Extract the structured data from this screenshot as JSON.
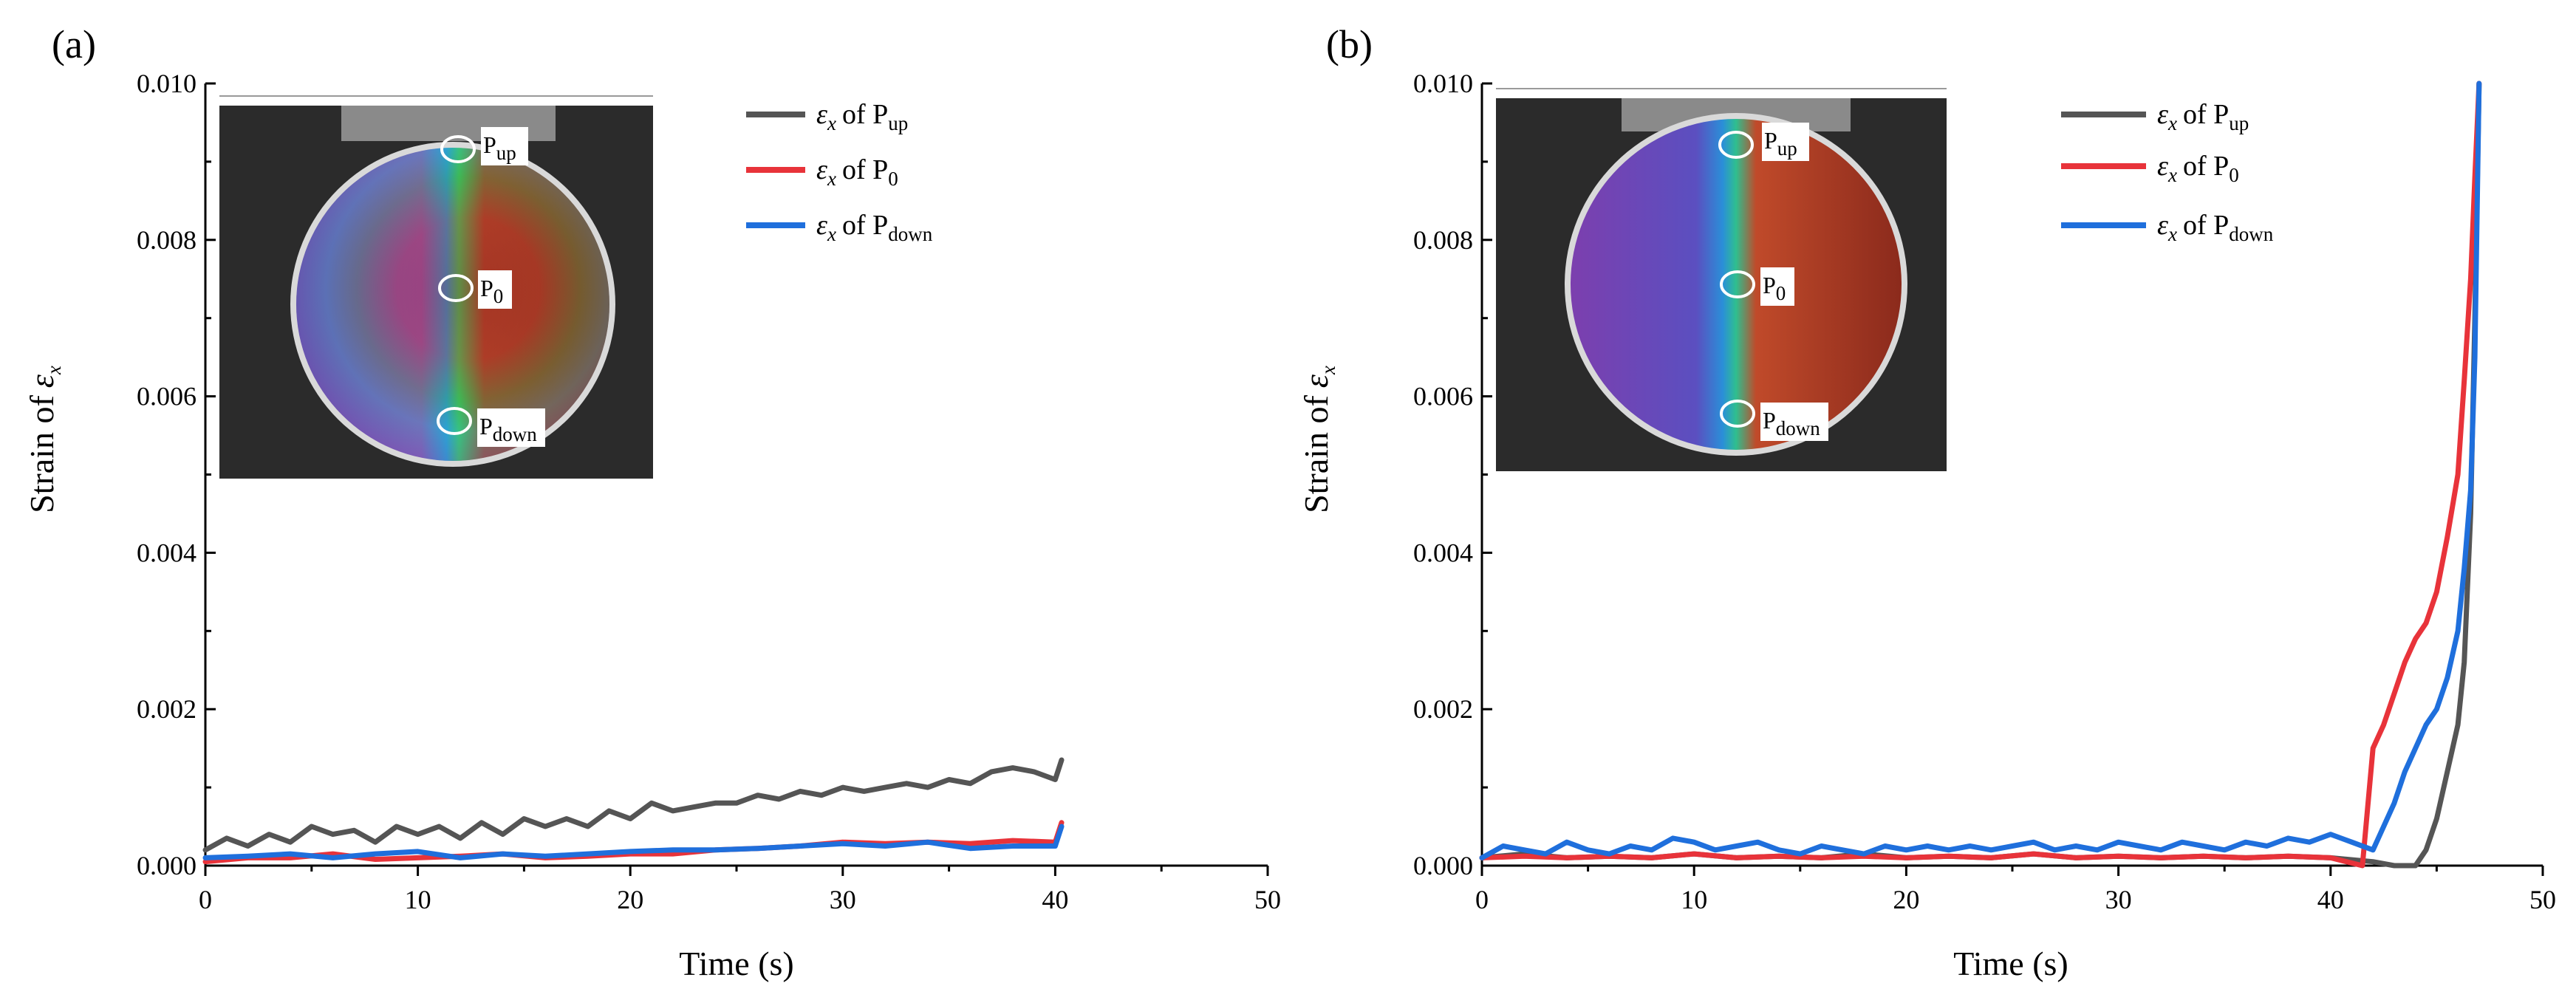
{
  "chart_data": [
    {
      "panel_label": "(a)",
      "type": "line",
      "xlabel": "Time (s)",
      "ylabel_prefix": "Strain of",
      "ylabel_symbol": "ε",
      "ylabel_sub": "x",
      "xlim": [
        0,
        50
      ],
      "ylim": [
        0,
        0.01
      ],
      "x_ticks": [
        0,
        10,
        20,
        30,
        40,
        50
      ],
      "y_ticks": [
        0,
        0.002,
        0.004,
        0.006,
        0.008,
        0.01
      ],
      "x_tick_labels": [
        "0",
        "10",
        "20",
        "30",
        "40",
        "50"
      ],
      "y_tick_labels": [
        "0.000",
        "0.002",
        "0.004",
        "0.006",
        "0.008",
        "0.010"
      ],
      "legend": [
        {
          "symbol": "ε",
          "sub1": "x",
          "text": "of P",
          "sub2": "up",
          "color": "#555555"
        },
        {
          "symbol": "ε",
          "sub1": "x",
          "text": "of P",
          "sub2": "0",
          "color": "#e8333a"
        },
        {
          "symbol": "ε",
          "sub1": "x",
          "text": "of P",
          "sub2": "down",
          "color": "#1f6fdc"
        }
      ],
      "inset_markers": [
        {
          "label": "P",
          "sub": "up"
        },
        {
          "label": "P",
          "sub": "0"
        },
        {
          "label": "P",
          "sub": "down"
        }
      ],
      "series": [
        {
          "name": "εx of Pup",
          "color": "#555555",
          "x": [
            0,
            1,
            2,
            3,
            4,
            5,
            6,
            7,
            8,
            9,
            10,
            11,
            12,
            13,
            14,
            15,
            16,
            17,
            18,
            19,
            20,
            21,
            22,
            23,
            24,
            25,
            26,
            27,
            28,
            29,
            30,
            31,
            32,
            33,
            34,
            35,
            36,
            37,
            38,
            39,
            40,
            40.3
          ],
          "y": [
            0.0002,
            0.00035,
            0.00025,
            0.0004,
            0.0003,
            0.0005,
            0.0004,
            0.00045,
            0.0003,
            0.0005,
            0.0004,
            0.0005,
            0.00035,
            0.00055,
            0.0004,
            0.0006,
            0.0005,
            0.0006,
            0.0005,
            0.0007,
            0.0006,
            0.0008,
            0.0007,
            0.00075,
            0.0008,
            0.0008,
            0.0009,
            0.00085,
            0.00095,
            0.0009,
            0.001,
            0.00095,
            0.001,
            0.00105,
            0.001,
            0.0011,
            0.00105,
            0.0012,
            0.00125,
            0.0012,
            0.0011,
            0.00135
          ]
        },
        {
          "name": "εx of P0",
          "color": "#e8333a",
          "x": [
            0,
            2,
            4,
            6,
            8,
            10,
            12,
            14,
            16,
            18,
            20,
            22,
            24,
            26,
            28,
            30,
            32,
            34,
            36,
            38,
            40,
            40.3
          ],
          "y": [
            5e-05,
            0.0001,
            0.0001,
            0.00015,
            8e-05,
            0.0001,
            0.00012,
            0.00015,
            0.0001,
            0.00012,
            0.00015,
            0.00015,
            0.0002,
            0.00022,
            0.00025,
            0.0003,
            0.00028,
            0.0003,
            0.00028,
            0.00032,
            0.0003,
            0.00055
          ]
        },
        {
          "name": "εx of Pdown",
          "color": "#1f6fdc",
          "x": [
            0,
            2,
            4,
            6,
            8,
            10,
            12,
            14,
            16,
            18,
            20,
            22,
            24,
            26,
            28,
            30,
            32,
            34,
            36,
            38,
            40,
            40.3
          ],
          "y": [
            0.0001,
            0.00012,
            0.00015,
            0.0001,
            0.00015,
            0.00018,
            0.0001,
            0.00015,
            0.00012,
            0.00015,
            0.00018,
            0.0002,
            0.0002,
            0.00022,
            0.00025,
            0.00028,
            0.00025,
            0.0003,
            0.00022,
            0.00025,
            0.00025,
            0.0005
          ]
        }
      ]
    },
    {
      "panel_label": "(b)",
      "type": "line",
      "xlabel": "Time (s)",
      "ylabel_prefix": "Strain of",
      "ylabel_symbol": "ε",
      "ylabel_sub": "x",
      "xlim": [
        0,
        50
      ],
      "ylim": [
        0,
        0.01
      ],
      "x_ticks": [
        0,
        10,
        20,
        30,
        40,
        50
      ],
      "y_ticks": [
        0,
        0.002,
        0.004,
        0.006,
        0.008,
        0.01
      ],
      "x_tick_labels": [
        "0",
        "10",
        "20",
        "30",
        "40",
        "50"
      ],
      "y_tick_labels": [
        "0.000",
        "0.002",
        "0.004",
        "0.006",
        "0.008",
        "0.010"
      ],
      "legend": [
        {
          "symbol": "ε",
          "sub1": "x",
          "text": "of P",
          "sub2": "up",
          "color": "#555555"
        },
        {
          "symbol": "ε",
          "sub1": "x",
          "text": "of P",
          "sub2": "0",
          "color": "#e8333a"
        },
        {
          "symbol": "ε",
          "sub1": "x",
          "text": "of P",
          "sub2": "down",
          "color": "#1f6fdc"
        }
      ],
      "inset_markers": [
        {
          "label": "P",
          "sub": "up"
        },
        {
          "label": "P",
          "sub": "0"
        },
        {
          "label": "P",
          "sub": "down"
        }
      ],
      "series": [
        {
          "name": "εx of Pup",
          "color": "#555555",
          "x": [
            0,
            2,
            4,
            6,
            8,
            10,
            12,
            14,
            16,
            18,
            20,
            22,
            24,
            26,
            28,
            30,
            32,
            34,
            36,
            38,
            40,
            42,
            43,
            44,
            44.5,
            45,
            45.5,
            46,
            46.3,
            46.6,
            46.8,
            47
          ],
          "y": [
            0.0001,
            0.00015,
            0.0001,
            0.00012,
            0.0001,
            0.00015,
            0.0001,
            0.00012,
            0.0001,
            0.00015,
            0.0001,
            0.00012,
            0.0001,
            0.00015,
            0.0001,
            0.00012,
            0.0001,
            0.00012,
            0.0001,
            0.00012,
            0.0001,
            5e-05,
            0.0,
            0.0,
            0.0002,
            0.0006,
            0.0012,
            0.0018,
            0.0026,
            0.0045,
            0.007,
            0.01
          ]
        },
        {
          "name": "εx of P0",
          "color": "#e8333a",
          "x": [
            0,
            2,
            4,
            6,
            8,
            10,
            12,
            14,
            16,
            18,
            20,
            22,
            24,
            26,
            28,
            30,
            32,
            34,
            36,
            38,
            40,
            41.5,
            42,
            42.5,
            43,
            43.5,
            44,
            44.5,
            45,
            45.5,
            46,
            46.3,
            46.6,
            46.8,
            47
          ],
          "y": [
            0.0001,
            0.00012,
            0.0001,
            0.00012,
            0.0001,
            0.00015,
            0.0001,
            0.00012,
            0.0001,
            0.00012,
            0.0001,
            0.00012,
            0.0001,
            0.00015,
            0.0001,
            0.00012,
            0.0001,
            0.00012,
            0.0001,
            0.00012,
            0.0001,
            0.0,
            0.0015,
            0.0018,
            0.0022,
            0.0026,
            0.0029,
            0.0031,
            0.0035,
            0.0042,
            0.005,
            0.0062,
            0.0075,
            0.0088,
            0.01
          ]
        },
        {
          "name": "εx of Pdown",
          "color": "#1f6fdc",
          "x": [
            0,
            1,
            2,
            3,
            4,
            5,
            6,
            7,
            8,
            9,
            10,
            11,
            12,
            13,
            14,
            15,
            16,
            17,
            18,
            19,
            20,
            21,
            22,
            23,
            24,
            25,
            26,
            27,
            28,
            29,
            30,
            31,
            32,
            33,
            34,
            35,
            36,
            37,
            38,
            39,
            40,
            41,
            42,
            43,
            43.5,
            44,
            44.5,
            45,
            45.5,
            46,
            46.3,
            46.6,
            46.8,
            47
          ],
          "y": [
            0.0001,
            0.00025,
            0.0002,
            0.00015,
            0.0003,
            0.0002,
            0.00015,
            0.00025,
            0.0002,
            0.00035,
            0.0003,
            0.0002,
            0.00025,
            0.0003,
            0.0002,
            0.00015,
            0.00025,
            0.0002,
            0.00015,
            0.00025,
            0.0002,
            0.00025,
            0.0002,
            0.00025,
            0.0002,
            0.00025,
            0.0003,
            0.0002,
            0.00025,
            0.0002,
            0.0003,
            0.00025,
            0.0002,
            0.0003,
            0.00025,
            0.0002,
            0.0003,
            0.00025,
            0.00035,
            0.0003,
            0.0004,
            0.0003,
            0.0002,
            0.0008,
            0.0012,
            0.0015,
            0.0018,
            0.002,
            0.0024,
            0.003,
            0.0038,
            0.0048,
            0.0065,
            0.01
          ]
        }
      ]
    }
  ]
}
